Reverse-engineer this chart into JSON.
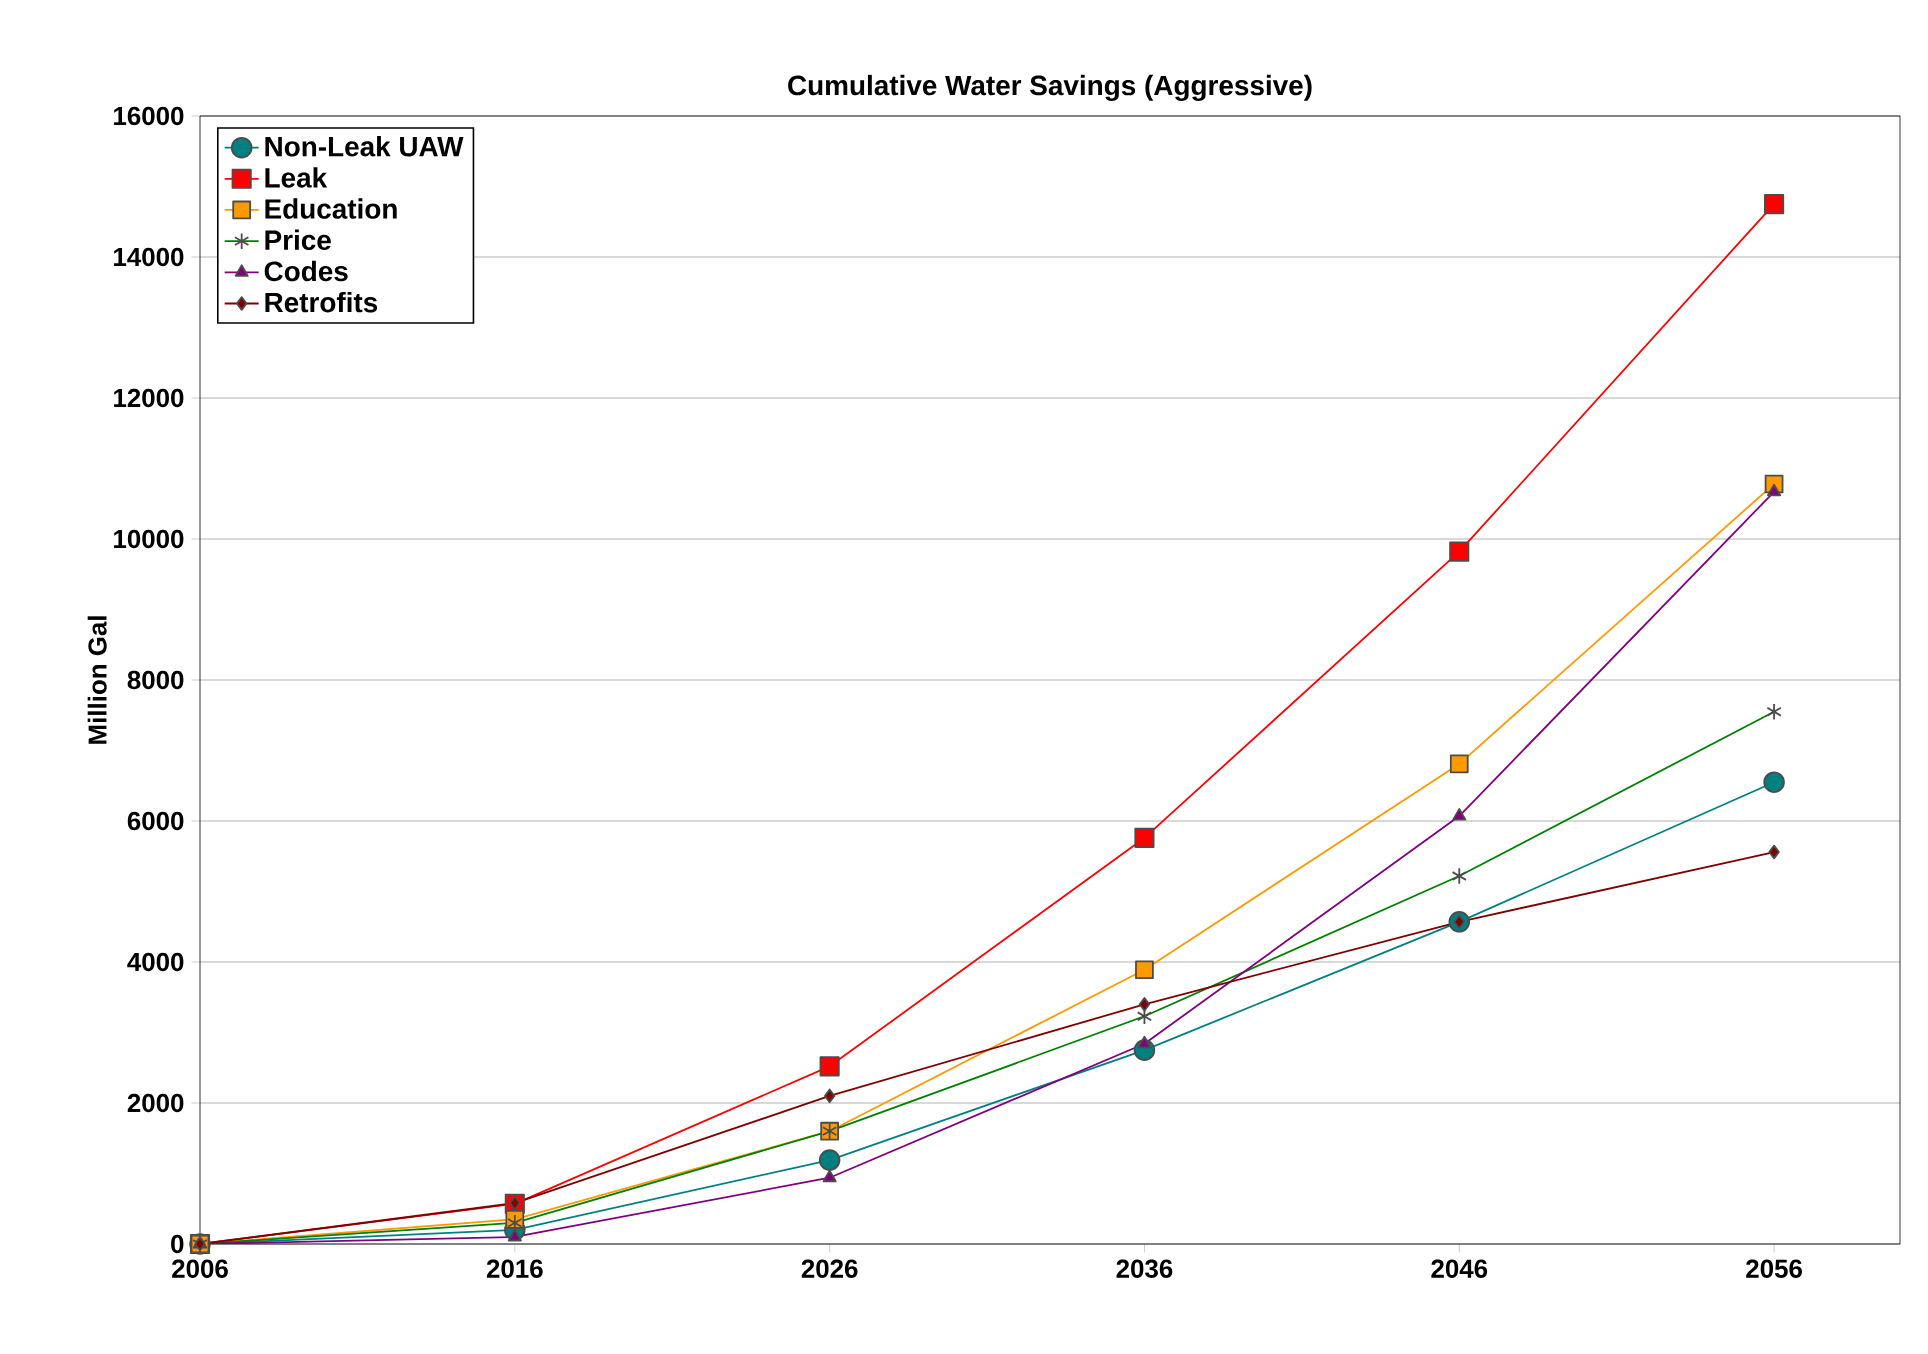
{
  "chart_data": {
    "type": "line",
    "title": "Cumulative Water Savings (Aggressive)",
    "ylabel": "Million Gal",
    "x": [
      2006,
      2016,
      2026,
      2036,
      2046,
      2056
    ],
    "xlim": [
      2006,
      2060
    ],
    "xticks": [
      2006,
      2016,
      2026,
      2036,
      2046,
      2056
    ],
    "ylim": [
      0,
      16000
    ],
    "yticks": [
      0,
      2000,
      4000,
      6000,
      8000,
      10000,
      12000,
      14000,
      16000
    ],
    "grid": "y",
    "legend": "top left",
    "series": [
      {
        "name": "Non-Leak UAW",
        "color": "#008080",
        "marker": "circle",
        "values": [
          0,
          200,
          1190,
          2750,
          4570,
          6550
        ]
      },
      {
        "name": "Leak",
        "color": "#ff0000",
        "marker": "square",
        "values": [
          0,
          570,
          2520,
          5760,
          9820,
          14750
        ]
      },
      {
        "name": "Education",
        "color": "#ff9900",
        "marker": "square",
        "values": [
          0,
          350,
          1600,
          3890,
          6810,
          10780
        ]
      },
      {
        "name": "Price",
        "color": "#008000",
        "marker": "cross",
        "values": [
          0,
          300,
          1600,
          3230,
          5220,
          7550
        ]
      },
      {
        "name": "Codes",
        "color": "#800080",
        "marker": "triangle",
        "values": [
          0,
          100,
          940,
          2840,
          6070,
          10670
        ]
      },
      {
        "name": "Retrofits",
        "color": "#800000",
        "marker": "diamond",
        "values": [
          0,
          580,
          2100,
          3400,
          4570,
          5560
        ]
      }
    ]
  }
}
